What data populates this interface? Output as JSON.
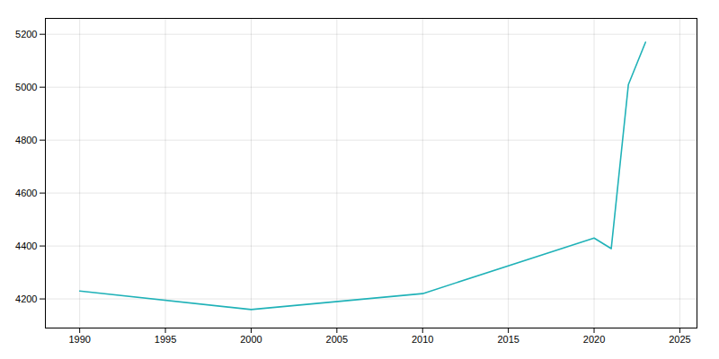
{
  "chart_data": {
    "type": "line",
    "x": [
      1990,
      2000,
      2010,
      2020,
      2021,
      2022,
      2023
    ],
    "values": [
      4230,
      4160,
      4220,
      4430,
      4390,
      5010,
      5170
    ],
    "color": "#20b2b8",
    "xlim": [
      1988,
      2026
    ],
    "xticks": [
      1990,
      1995,
      2000,
      2005,
      2010,
      2015,
      2020,
      2025
    ],
    "ylim": [
      4090,
      5260
    ],
    "yticks": [
      4200,
      4400,
      4600,
      4800,
      5000,
      5200
    ],
    "grid": true
  }
}
